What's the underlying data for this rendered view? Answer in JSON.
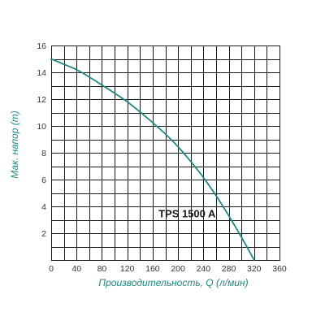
{
  "chart_data": {
    "type": "line",
    "title": "",
    "xlabel": "Производительность, Q (л/мин)",
    "ylabel": "Мак. напор (m)",
    "xlim": [
      0,
      360
    ],
    "ylim": [
      0,
      16
    ],
    "x_ticks": [
      0,
      40,
      80,
      120,
      160,
      200,
      240,
      280,
      320,
      360
    ],
    "y_ticks": [
      2,
      4,
      6,
      8,
      10,
      12,
      14,
      16
    ],
    "grid": true,
    "series": [
      {
        "name": "TPS 1500 A",
        "color": "#1a8a80",
        "x": [
          0,
          20,
          40,
          60,
          80,
          100,
          120,
          140,
          160,
          180,
          200,
          220,
          240,
          260,
          280,
          300,
          320
        ],
        "y": [
          15.0,
          14.6,
          14.2,
          13.65,
          13.05,
          12.45,
          11.8,
          11.05,
          10.25,
          9.4,
          8.45,
          7.35,
          6.15,
          4.8,
          3.3,
          1.7,
          0.0
        ]
      }
    ],
    "annotations": [
      {
        "text": "TPS 1500 A",
        "x": 150,
        "y": 3.5
      }
    ]
  },
  "colors": {
    "axis_title": "#1a8a80",
    "grid": "#1a1a1a",
    "curve": "#1a8a80"
  }
}
